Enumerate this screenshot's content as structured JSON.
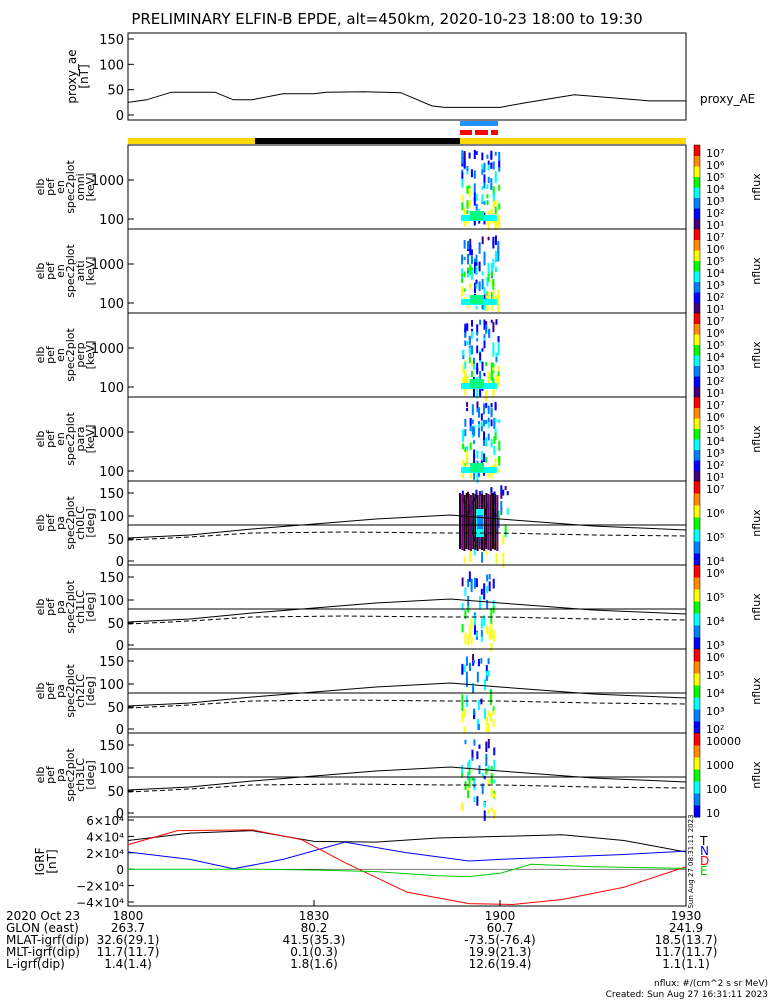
{
  "title": "PRELIMINARY ELFIN-B EPDE, alt=450km, 2020-10-23 18:00 to 19:30",
  "chart_data": [
    {
      "type": "line",
      "ylabel": "proxy_ae\n[nT]",
      "legend": "proxy_AE",
      "yticks": [
        "150",
        "100",
        "50",
        "0"
      ],
      "ylim": [
        0,
        150
      ],
      "x_minutes": [
        0,
        3,
        7,
        14,
        17,
        20,
        25,
        30,
        32,
        38,
        44,
        49,
        51,
        54,
        60,
        64,
        72,
        84,
        90
      ],
      "y": [
        25,
        30,
        45,
        45,
        30,
        30,
        42,
        42,
        45,
        46,
        44,
        18,
        15,
        15,
        15,
        24,
        40,
        28,
        28
      ]
    },
    {
      "type": "heatmap",
      "panels": [
        {
          "ylabel": [
            "elb",
            "pef",
            "en",
            "spec2plot",
            "omni",
            "[keV]"
          ],
          "yticks": [
            "1000",
            "100"
          ],
          "zlabel": "nflux",
          "cbar": [
            "10⁷",
            "10⁶",
            "10⁵",
            "10⁴",
            "10³",
            "10²",
            "10¹"
          ]
        },
        {
          "ylabel": [
            "elb",
            "pef",
            "en",
            "spec2plot",
            "anti",
            "[keV]"
          ],
          "yticks": [
            "1000",
            "100"
          ],
          "zlabel": "nflux",
          "cbar": [
            "10⁷",
            "10⁶",
            "10⁵",
            "10⁴",
            "10³",
            "10²",
            "10¹"
          ]
        },
        {
          "ylabel": [
            "elb",
            "pef",
            "en",
            "spec2plot",
            "perp",
            "[keV]"
          ],
          "yticks": [
            "1000",
            "100"
          ],
          "zlabel": "nflux",
          "cbar": [
            "10⁷",
            "10⁶",
            "10⁵",
            "10⁴",
            "10³",
            "10²",
            "10¹"
          ]
        },
        {
          "ylabel": [
            "elb",
            "pef",
            "en",
            "spec2plot",
            "para",
            "[keV]"
          ],
          "yticks": [
            "1000",
            "100"
          ],
          "zlabel": "nflux",
          "cbar": [
            "10⁷",
            "10⁶",
            "10⁵",
            "10⁴",
            "10³",
            "10²",
            "10¹"
          ]
        },
        {
          "ylabel": [
            "elb",
            "pef",
            "pa",
            "spec2plot",
            "ch0LC",
            "[deg]"
          ],
          "yticks": [
            "150",
            "100",
            "50",
            "0"
          ],
          "zlabel": "nflux",
          "cbar": [
            "10⁷",
            "10⁶",
            "10⁵",
            "10⁴"
          ]
        },
        {
          "ylabel": [
            "elb",
            "pef",
            "pa",
            "spec2plot",
            "ch1LC",
            "[deg]"
          ],
          "yticks": [
            "150",
            "100",
            "50",
            "0"
          ],
          "zlabel": "nflux",
          "cbar": [
            "10⁶",
            "10⁵",
            "10⁴",
            "10³"
          ]
        },
        {
          "ylabel": [
            "elb",
            "pef",
            "pa",
            "spec2plot",
            "ch2LC",
            "[deg]"
          ],
          "yticks": [
            "150",
            "100",
            "50",
            "0"
          ],
          "zlabel": "nflux",
          "cbar": [
            "10⁶",
            "10⁵",
            "10⁴",
            "10³",
            "10²"
          ]
        },
        {
          "ylabel": [
            "elb",
            "pef",
            "pa",
            "spec2plot",
            "ch3LC",
            "[deg]"
          ],
          "yticks": [
            "150",
            "100",
            "50",
            "0"
          ],
          "zlabel": "nflux",
          "cbar": [
            "10000",
            "1000",
            "100",
            "10"
          ]
        }
      ]
    },
    {
      "type": "line",
      "ylabel": "IGRF\n[nT]",
      "yticks": [
        "6×10⁴",
        "4×10⁴",
        "2×10⁴",
        "0",
        "−2×10⁴",
        "−4×10⁴"
      ],
      "ylim": [
        -40000,
        60000
      ],
      "series": [
        {
          "name": "T",
          "color": "#000000",
          "x_minutes": [
            0,
            10,
            20,
            30,
            40,
            50,
            60,
            70,
            80,
            90
          ],
          "values": [
            35000,
            44000,
            47000,
            34000,
            33000,
            38000,
            40000,
            42000,
            35000,
            21000
          ]
        },
        {
          "name": "N",
          "color": "#0000ff",
          "x_minutes": [
            0,
            10,
            17,
            25,
            35,
            45,
            55,
            60,
            70,
            80,
            90
          ],
          "values": [
            21000,
            12000,
            500,
            12000,
            33000,
            20000,
            10000,
            12000,
            15000,
            18000,
            22000
          ]
        },
        {
          "name": "D",
          "color": "#ff0000",
          "x_minutes": [
            0,
            8,
            20,
            28,
            35,
            45,
            55,
            62,
            70,
            80,
            90
          ],
          "values": [
            30000,
            47000,
            48000,
            36000,
            8000,
            -28000,
            -42000,
            -43000,
            -37000,
            -22000,
            3000
          ]
        },
        {
          "name": "E",
          "color": "#00cc00",
          "x_minutes": [
            0,
            10,
            20,
            30,
            40,
            50,
            55,
            60,
            65,
            75,
            90
          ],
          "values": [
            0,
            0,
            0,
            -1000,
            -3000,
            -8000,
            -9000,
            -5000,
            6000,
            3000,
            1000
          ]
        }
      ]
    }
  ],
  "xaxis": {
    "rows": [
      {
        "label": "2020 Oct 23",
        "values": [
          "1800",
          "1830",
          "1900",
          "1930"
        ]
      },
      {
        "label": "GLON (east)",
        "values": [
          "263.7",
          "80.2",
          "60.7",
          "241.9"
        ]
      },
      {
        "label": "MLAT-igrf(dip)",
        "values": [
          "32.6(29.1)",
          "41.5(35.3)",
          "-73.5(-76.4)",
          "18.5(13.7)"
        ]
      },
      {
        "label": "MLT-igrf(dip)",
        "values": [
          "11.7(11.7)",
          "0.1(0.3)",
          "19.9(21.3)",
          "11.7(11.7)"
        ]
      },
      {
        "label": "L-igrf(dip)",
        "values": [
          "1.4(1.4)",
          "1.8(1.6)",
          "12.6(19.4)",
          "1.1(1.1)"
        ]
      }
    ]
  },
  "footer": {
    "units": "nflux: #/(cm^2 s sr MeV)",
    "created": "Created: Sun Aug 27 16:31:11 2023",
    "stamp": "Sun Aug 27 08:31:11 2023"
  },
  "colors": {
    "day_bar": "#ffd700",
    "night_bar": "#000000",
    "science_zone_blue": "#1e90ff",
    "science_zone_red": "#ff0000"
  }
}
